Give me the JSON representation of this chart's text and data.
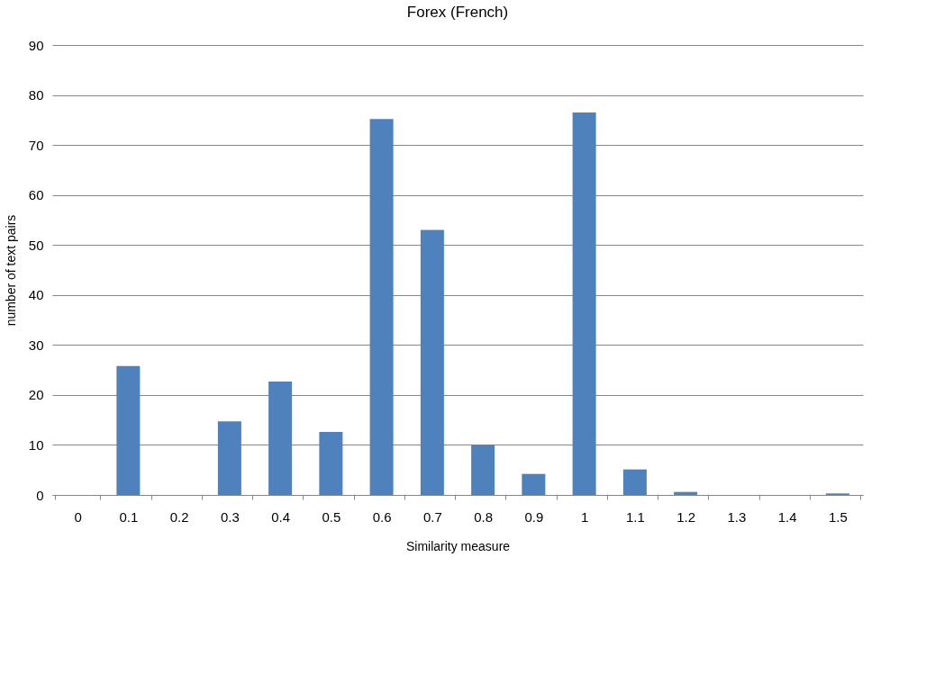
{
  "chart_data": {
    "type": "bar",
    "title": "Forex (French)",
    "xlabel": "Similarity measure",
    "ylabel": "number of text pairs",
    "categories": [
      "0",
      "0.1",
      "0.2",
      "0.3",
      "0.4",
      "0.5",
      "0.6",
      "0.7",
      "0.8",
      "0.9",
      "1",
      "1.1",
      "1.2",
      "1.3",
      "1.4",
      "1.5"
    ],
    "values": [
      0,
      25.8,
      0,
      14.7,
      22.7,
      12.6,
      75.2,
      53,
      10,
      4.2,
      76.5,
      5.1,
      0.6,
      0,
      0,
      0.3
    ],
    "color": "#4f81bd",
    "ylim": [
      0,
      90
    ],
    "yticks": [
      0,
      10,
      20,
      30,
      40,
      50,
      60,
      70,
      80,
      90
    ],
    "grid": "y",
    "legend": false
  }
}
